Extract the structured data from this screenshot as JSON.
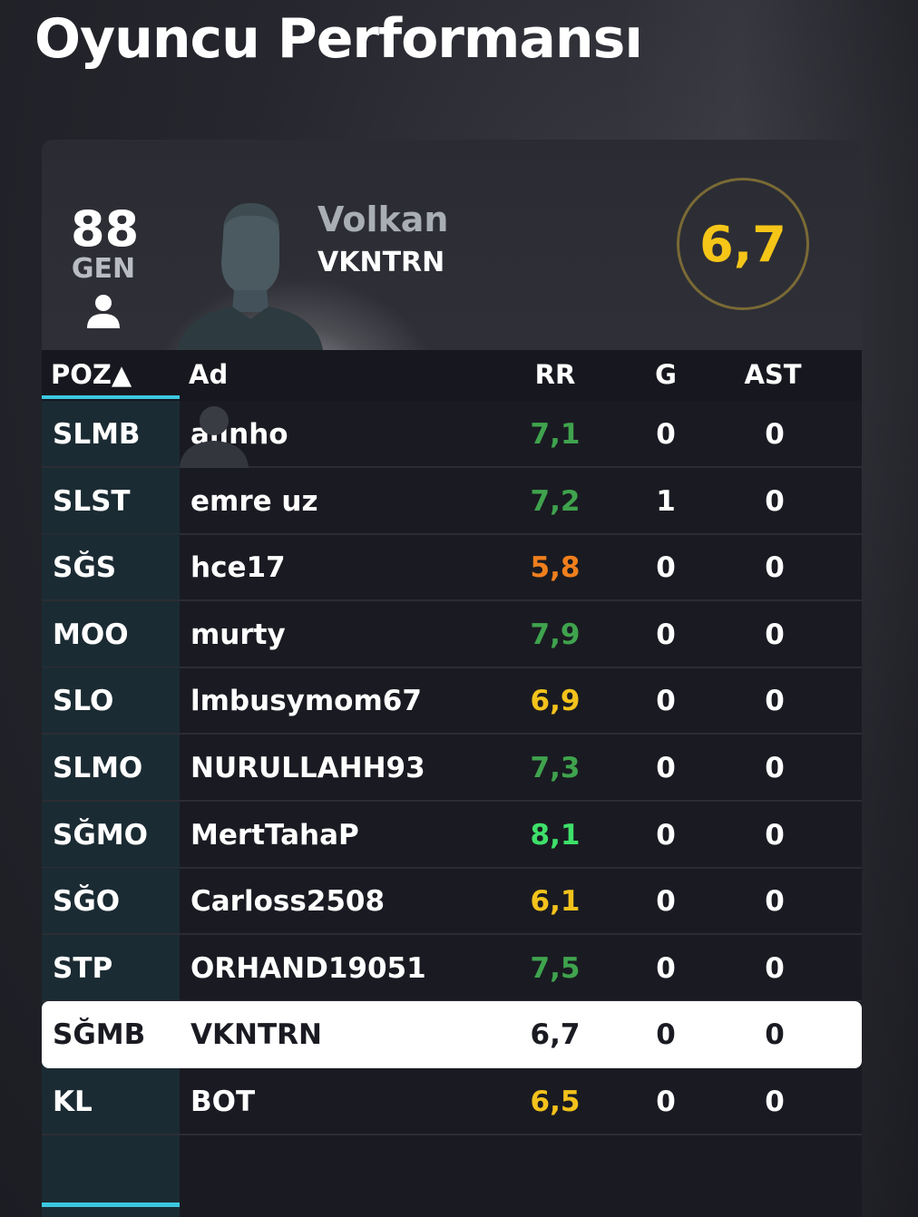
{
  "page": {
    "title": "Oyuncu Performansı"
  },
  "player": {
    "overall": "88",
    "overall_label": "GEN",
    "first_name": "Volkan",
    "gamertag": "VKNTRN",
    "match_rating": "6,7"
  },
  "table": {
    "headers": {
      "position": "POZ▲",
      "name": "Ad",
      "rating": "RR",
      "goals": "G",
      "assists": "AST"
    },
    "rows": [
      {
        "position": "SLMB",
        "name": "alinho",
        "rating": "7,1",
        "goals": "0",
        "assists": "0",
        "rating_color": "#3fa34d"
      },
      {
        "position": "SLST",
        "name": "emre uz",
        "rating": "7,2",
        "goals": "1",
        "assists": "0",
        "rating_color": "#3fa34d"
      },
      {
        "position": "SĞS",
        "name": "hce17",
        "rating": "5,8",
        "goals": "0",
        "assists": "0",
        "rating_color": "#f07f1d"
      },
      {
        "position": "MOO",
        "name": "murty",
        "rating": "7,9",
        "goals": "0",
        "assists": "0",
        "rating_color": "#3fa34d"
      },
      {
        "position": "SLO",
        "name": "lmbusymom67",
        "rating": "6,9",
        "goals": "0",
        "assists": "0",
        "rating_color": "#f3c21b"
      },
      {
        "position": "SLMO",
        "name": "NURULLAHH93",
        "rating": "7,3",
        "goals": "0",
        "assists": "0",
        "rating_color": "#3fa34d"
      },
      {
        "position": "SĞMO",
        "name": "MertTahaP",
        "rating": "8,1",
        "goals": "0",
        "assists": "0",
        "rating_color": "#3ee06a"
      },
      {
        "position": "SĞO",
        "name": "Carloss2508",
        "rating": "6,1",
        "goals": "0",
        "assists": "0",
        "rating_color": "#f3c21b"
      },
      {
        "position": "STP",
        "name": "ORHAND19051",
        "rating": "7,5",
        "goals": "0",
        "assists": "0",
        "rating_color": "#3fa34d"
      },
      {
        "position": "SĞMB",
        "name": "VKNTRN",
        "rating": "6,7",
        "goals": "0",
        "assists": "0",
        "rating_color": "#1a1b22",
        "highlighted": true
      },
      {
        "position": "KL",
        "name": "BOT",
        "rating": "6,5",
        "goals": "0",
        "assists": "0",
        "rating_color": "#f3c21b"
      }
    ]
  },
  "colors": {
    "accent": "#3cc8e0",
    "rating_gold": "#f5c518"
  }
}
